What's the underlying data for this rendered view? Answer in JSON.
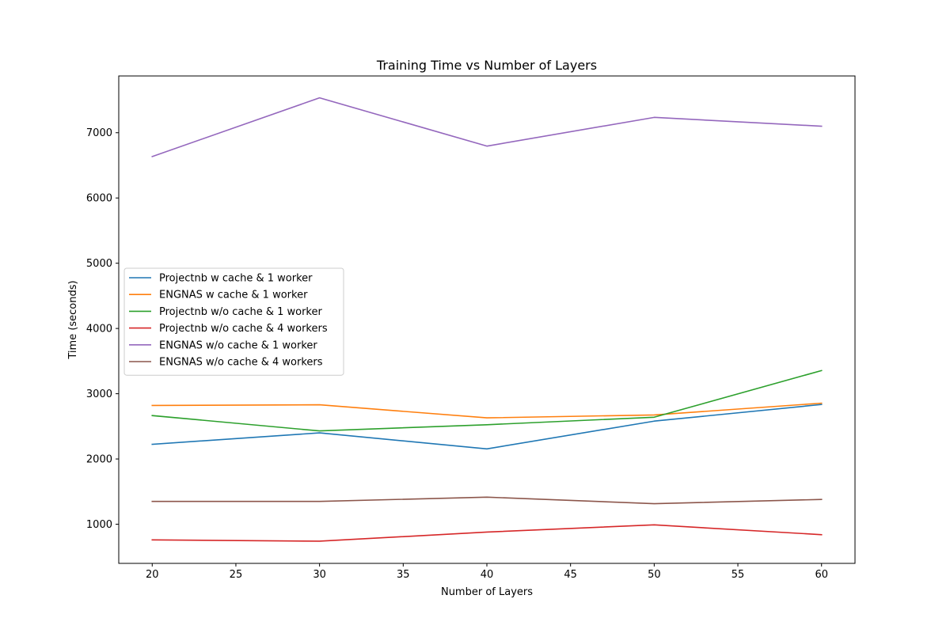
{
  "chart_data": {
    "type": "line",
    "title": "Training Time vs Number of Layers",
    "xlabel": "Number of Layers",
    "ylabel": "Time (seconds)",
    "x": [
      20,
      30,
      40,
      50,
      60
    ],
    "xlim": [
      18,
      62
    ],
    "ylim": [
      400,
      7870
    ],
    "xticks": [
      20,
      25,
      30,
      35,
      40,
      45,
      50,
      55,
      60
    ],
    "yticks": [
      1000,
      2000,
      3000,
      4000,
      5000,
      6000,
      7000
    ],
    "grid": false,
    "legend_position": "center-left",
    "series": [
      {
        "name": "Projectnb w cache & 1 worker",
        "color": "#1f77b4",
        "values": [
          2225,
          2400,
          2155,
          2580,
          2835
        ]
      },
      {
        "name": "ENGNAS w cache & 1 worker",
        "color": "#ff7f0e",
        "values": [
          2820,
          2830,
          2630,
          2675,
          2855
        ]
      },
      {
        "name": "Projectnb w/o cache & 1 worker",
        "color": "#2ca02c",
        "values": [
          2665,
          2430,
          2525,
          2640,
          3355
        ]
      },
      {
        "name": "Projectnb w/o cache & 4 workers",
        "color": "#d62728",
        "values": [
          760,
          740,
          880,
          990,
          840
        ]
      },
      {
        "name": "ENGNAS w/o cache & 1 worker",
        "color": "#9467bd",
        "values": [
          6635,
          7535,
          6795,
          7235,
          7100
        ]
      },
      {
        "name": "ENGNAS w/o cache & 4 workers",
        "color": "#8c564b",
        "values": [
          1350,
          1350,
          1415,
          1315,
          1380
        ]
      }
    ]
  }
}
